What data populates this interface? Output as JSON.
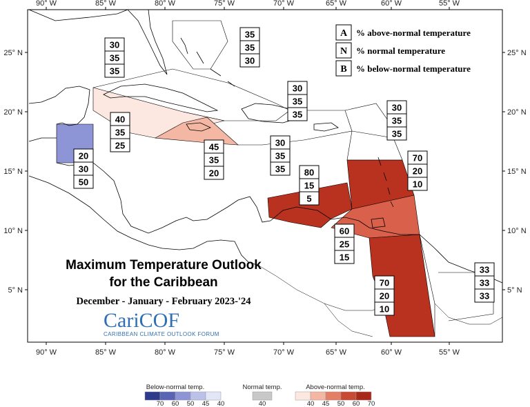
{
  "title": {
    "line1": "Maximum Temperature Outlook",
    "line2": "for the Caribbean",
    "period": "December - January - February 2023-'24"
  },
  "logo": {
    "name": "CariCOF",
    "tagline": "CARIBBEAN CLIMATE OUTLOOK FORUM"
  },
  "key": [
    {
      "letter": "A",
      "text": "% above-normal temperature"
    },
    {
      "letter": "N",
      "text": "% normal temperature"
    },
    {
      "letter": "B",
      "text": "% below-normal temperature"
    }
  ],
  "axes": {
    "lon_labels": [
      "90° W",
      "85° W",
      "80° W",
      "75° W",
      "70° W",
      "65° W",
      "60° W",
      "55° W"
    ],
    "lat_labels_left": [
      "25° N",
      "20° N",
      "15° N",
      "10° N",
      "5° N"
    ],
    "lat_labels_right": [
      "25° N",
      "20° N",
      "15° N",
      "10° N",
      "5° N"
    ]
  },
  "regions": [
    {
      "name": "bahamas",
      "fill": "none",
      "A": "35",
      "N": "35",
      "B": "30"
    },
    {
      "name": "cuba",
      "fill": "none",
      "A": "30",
      "N": "35",
      "B": "35"
    },
    {
      "name": "cayman-western-caribbean",
      "fill": "#fce8e0",
      "A": "40",
      "N": "35",
      "B": "25"
    },
    {
      "name": "jamaica",
      "fill": "#f4b7a4",
      "A": "45",
      "N": "35",
      "B": "20"
    },
    {
      "name": "hispaniola-north",
      "fill": "none",
      "A": "30",
      "N": "35",
      "B": "35"
    },
    {
      "name": "hispaniola-puerto-rico",
      "fill": "none",
      "A": "30",
      "N": "35",
      "B": "35"
    },
    {
      "name": "northern-leewards",
      "fill": "none",
      "A": "30",
      "N": "35",
      "B": "35"
    },
    {
      "name": "belize",
      "fill": "#8e95d6",
      "A": "20",
      "N": "30",
      "B": "50"
    },
    {
      "name": "abc-islands-venezuela-coast",
      "fill": "#b8321f",
      "A": "80",
      "N": "15",
      "B": "5"
    },
    {
      "name": "eastern-caribbean",
      "fill": "#b8321f",
      "A": "70",
      "N": "20",
      "B": "10"
    },
    {
      "name": "trinidad-tobago",
      "fill": "#d9604a",
      "A": "60",
      "N": "25",
      "B": "15"
    },
    {
      "name": "guyana",
      "fill": "#b8321f",
      "A": "70",
      "N": "20",
      "B": "10"
    },
    {
      "name": "french-guiana",
      "fill": "none",
      "A": "33",
      "N": "33",
      "B": "33"
    }
  ],
  "colorbars": [
    {
      "name": "below-normal",
      "title": "Below-normal temp.",
      "ticks": [
        "70",
        "60",
        "50",
        "45",
        "40"
      ],
      "colors": [
        "#2e3a8c",
        "#5a64b5",
        "#8e95d6",
        "#bcc1ea",
        "#e3e6f7"
      ]
    },
    {
      "name": "normal",
      "title": "Normal temp.",
      "ticks": [
        "40"
      ],
      "colors": [
        "#c8c8c8"
      ]
    },
    {
      "name": "above-normal",
      "title": "Above-normal temp.",
      "ticks": [
        "40",
        "45",
        "50",
        "60",
        "70"
      ],
      "colors": [
        "#fce8e0",
        "#f4b7a4",
        "#e47f66",
        "#c94a33",
        "#a8281a"
      ]
    }
  ]
}
